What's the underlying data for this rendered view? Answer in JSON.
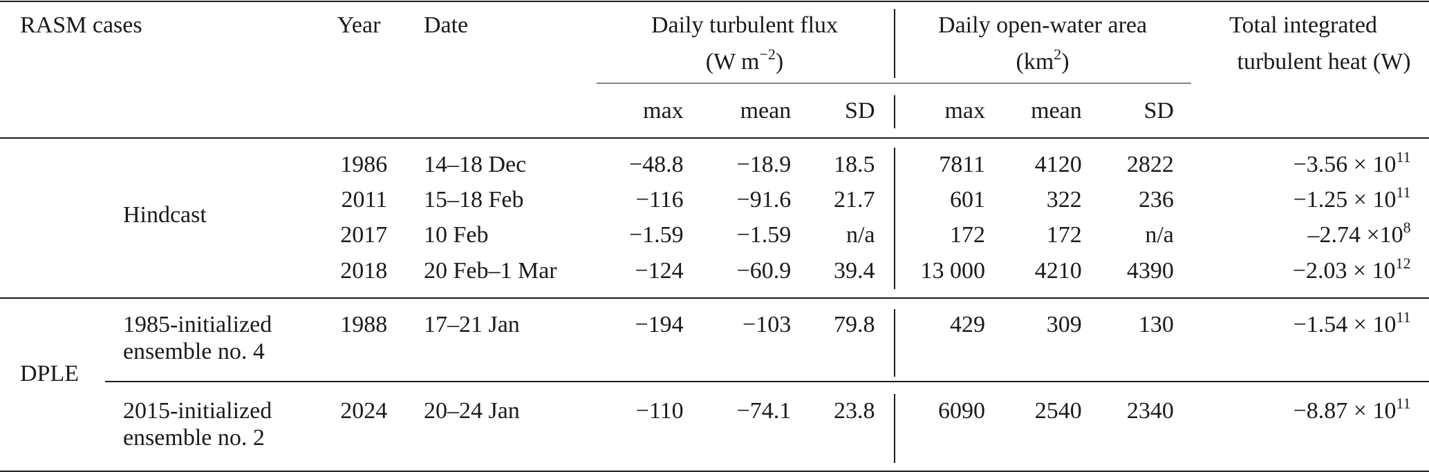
{
  "header": {
    "case": "RASM cases",
    "year": "Year",
    "date": "Date",
    "flux": {
      "title": "Daily turbulent flux",
      "unit": [
        "(W m",
        "−2",
        ")"
      ],
      "stats": [
        "max",
        "mean",
        "SD"
      ]
    },
    "area": {
      "title": "Daily open-water area",
      "unit": [
        "(km",
        "2",
        ")"
      ],
      "stats": [
        "max",
        "mean",
        "SD"
      ]
    },
    "total": [
      "Total integrated",
      "turbulent heat (W)"
    ]
  },
  "hindcast": {
    "label": "Hindcast",
    "rows": [
      {
        "year": "1986",
        "date": "14–18 Dec",
        "flux": [
          "−48.8",
          "−18.9",
          "18.5"
        ],
        "area": [
          "7811",
          "4120",
          "2822"
        ],
        "total": [
          "−3.56 × 10",
          "11"
        ]
      },
      {
        "year": "2011",
        "date": "15–18 Feb",
        "flux": [
          "−116",
          "−91.6",
          "21.7"
        ],
        "area": [
          "601",
          "322",
          "236"
        ],
        "total": [
          "−1.25 × 10",
          "11"
        ]
      },
      {
        "year": "2017",
        "date": "10 Feb",
        "flux": [
          "−1.59",
          "−1.59",
          "n/a"
        ],
        "area": [
          "172",
          "172",
          "n/a"
        ],
        "total": [
          "–2.74 ×10",
          "8"
        ]
      },
      {
        "year": "2018",
        "date": "20 Feb–1 Mar",
        "flux": [
          "−124",
          "−60.9",
          "39.4"
        ],
        "area": [
          "13 000",
          "4210",
          "4390"
        ],
        "total": [
          "−2.03 × 10",
          "12"
        ]
      }
    ]
  },
  "dple": {
    "label": "DPLE",
    "rows": [
      {
        "case": [
          "1985-initialized",
          "ensemble no. 4"
        ],
        "year": "1988",
        "date": "17–21 Jan",
        "flux": [
          "−194",
          "−103",
          "79.8"
        ],
        "area": [
          "429",
          "309",
          "130"
        ],
        "total": [
          "−1.54 × 10",
          "11"
        ]
      },
      {
        "case": [
          "2015-initialized",
          "ensemble no. 2"
        ],
        "year": "2024",
        "date": "20–24 Jan",
        "flux": [
          "−110",
          "−74.1",
          "23.8"
        ],
        "area": [
          "6090",
          "2540",
          "2340"
        ],
        "total": [
          "−8.87 × 10",
          "11"
        ]
      }
    ]
  }
}
